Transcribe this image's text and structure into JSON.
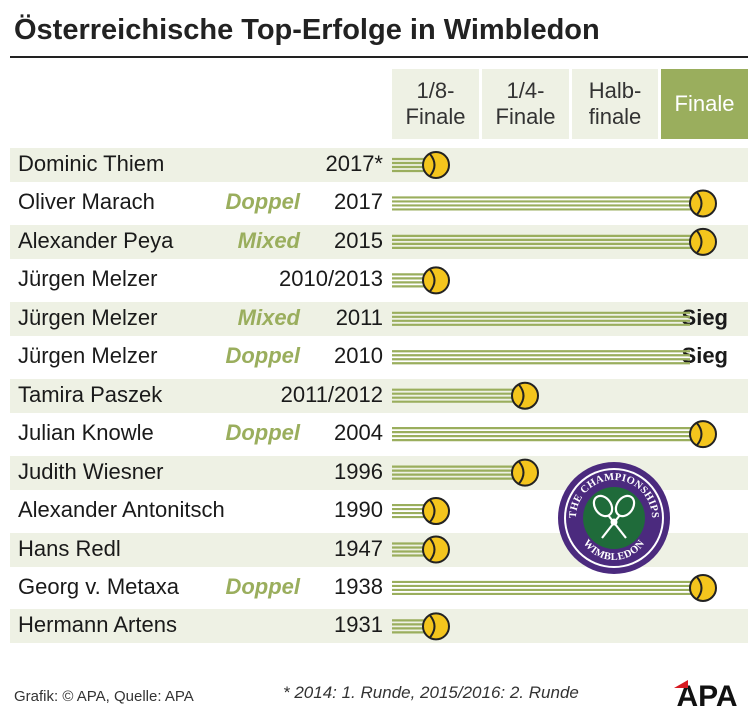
{
  "title": "Österreichische Top-Erfolge in Wimbledon",
  "columns": [
    "1/8-\nFinale",
    "1/4-\nFinale",
    "Halb-\nfinale",
    "Finale"
  ],
  "active_column": 3,
  "footer_credit": "Grafik: © APA, Quelle: APA",
  "footnote": "* 2014: 1. Runde, 2015/2016: 2. Runde",
  "apa_logo_text": "APA",
  "wimbledon_logo_text": [
    "THE CHAMPIONSHIPS",
    "WIMBLEDON"
  ],
  "colors": {
    "accent": "#9aae5d",
    "shade": "#eef1e4",
    "ball": "#f4c51d",
    "wimbledon_purple": "#4b2a7e",
    "wimbledon_green": "#1f6b3a",
    "apa_red": "#d71920"
  },
  "chart_data": {
    "type": "bar",
    "stages": [
      "1/8-Finale",
      "1/4-Finale",
      "Halbfinale",
      "Finale"
    ],
    "rows": [
      {
        "name": "Dominic Thiem",
        "kind": "",
        "year": "2017*",
        "stage": "1/8-Finale",
        "result": ""
      },
      {
        "name": "Oliver Marach",
        "kind": "Doppel",
        "year": "2017",
        "stage": "Finale",
        "result": ""
      },
      {
        "name": "Alexander Peya",
        "kind": "Mixed",
        "year": "2015",
        "stage": "Finale",
        "result": ""
      },
      {
        "name": "Jürgen Melzer",
        "kind": "",
        "year": "2010/2013",
        "stage": "1/8-Finale",
        "result": ""
      },
      {
        "name": "Jürgen Melzer",
        "kind": "Mixed",
        "year": "2011",
        "stage": "Finale",
        "result": "Sieg"
      },
      {
        "name": "Jürgen Melzer",
        "kind": "Doppel",
        "year": "2010",
        "stage": "Finale",
        "result": "Sieg"
      },
      {
        "name": "Tamira Paszek",
        "kind": "",
        "year": "2011/2012",
        "stage": "1/4-Finale",
        "result": ""
      },
      {
        "name": "Julian Knowle",
        "kind": "Doppel",
        "year": "2004",
        "stage": "Finale",
        "result": ""
      },
      {
        "name": "Judith Wiesner",
        "kind": "",
        "year": "1996",
        "stage": "1/4-Finale",
        "result": ""
      },
      {
        "name": "Alexander Antonitsch",
        "kind": "",
        "year": "1990",
        "stage": "1/8-Finale",
        "result": ""
      },
      {
        "name": "Hans Redl",
        "kind": "",
        "year": "1947",
        "stage": "1/8-Finale",
        "result": ""
      },
      {
        "name": "Georg v. Metaxa",
        "kind": "Doppel",
        "year": "1938",
        "stage": "Finale",
        "result": ""
      },
      {
        "name": "Hermann Artens",
        "kind": "",
        "year": "1931",
        "stage": "1/8-Finale",
        "result": ""
      }
    ]
  }
}
